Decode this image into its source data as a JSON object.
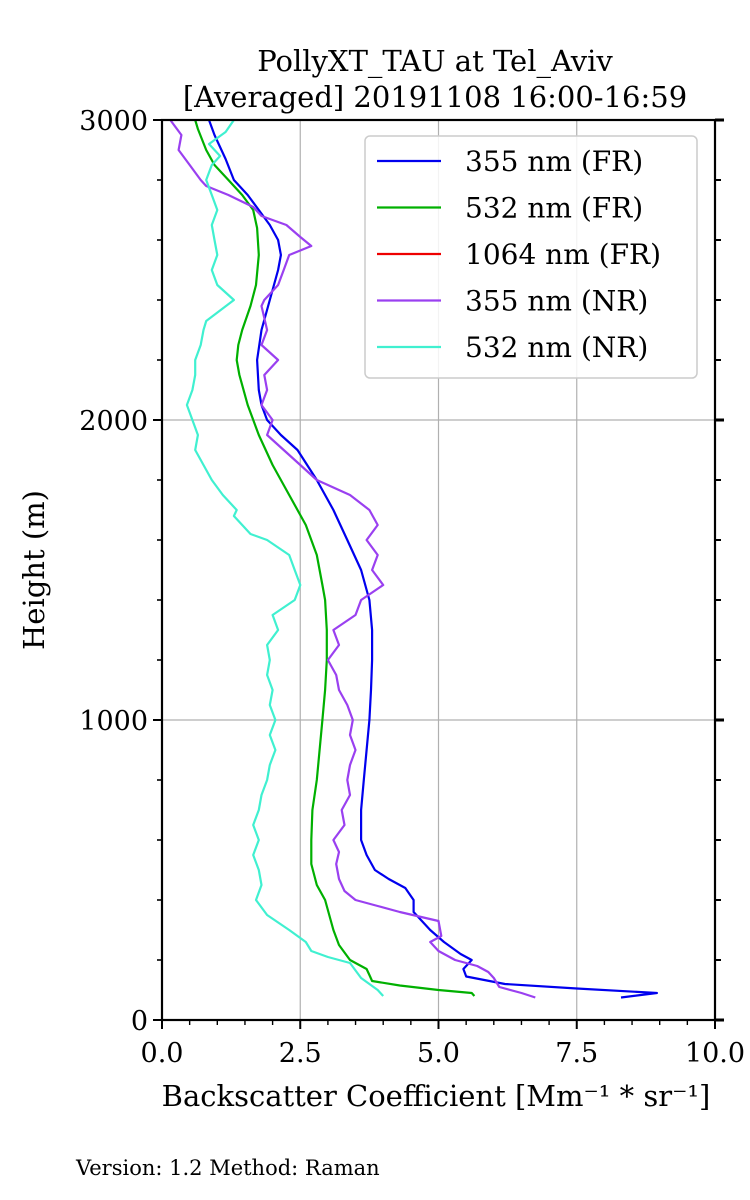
{
  "chart_data": {
    "type": "line",
    "title_line1": "PollyXT_TAU at Tel_Aviv",
    "title_line2": "[Averaged] 20191108 16:00-16:59",
    "xlabel": "Backscatter Coefficient [Mm⁻¹ * sr⁻¹]",
    "ylabel": "Height (m)",
    "xlim": [
      0,
      10
    ],
    "ylim": [
      0,
      3000
    ],
    "xticks": [
      "0.0",
      "2.5",
      "5.0",
      "7.5",
      "10.0"
    ],
    "yticks": [
      "0",
      "1000",
      "2000",
      "3000"
    ],
    "grid": true,
    "legend_position": "top-right",
    "series": [
      {
        "name": "355 nm (FR)",
        "color": "#0000ee",
        "points": [
          [
            8.3,
            75
          ],
          [
            8.95,
            90
          ],
          [
            7.5,
            105
          ],
          [
            6.2,
            120
          ],
          [
            5.5,
            145
          ],
          [
            5.45,
            170
          ],
          [
            5.6,
            200
          ],
          [
            5.4,
            220
          ],
          [
            5.1,
            260
          ],
          [
            4.85,
            300
          ],
          [
            4.7,
            330
          ],
          [
            4.55,
            360
          ],
          [
            4.55,
            400
          ],
          [
            4.4,
            440
          ],
          [
            4.1,
            470
          ],
          [
            3.85,
            500
          ],
          [
            3.7,
            550
          ],
          [
            3.6,
            600
          ],
          [
            3.6,
            700
          ],
          [
            3.65,
            800
          ],
          [
            3.7,
            900
          ],
          [
            3.75,
            1000
          ],
          [
            3.78,
            1100
          ],
          [
            3.8,
            1200
          ],
          [
            3.8,
            1300
          ],
          [
            3.75,
            1400
          ],
          [
            3.6,
            1500
          ],
          [
            3.35,
            1600
          ],
          [
            3.1,
            1700
          ],
          [
            2.8,
            1800
          ],
          [
            2.45,
            1900
          ],
          [
            2.15,
            1950
          ],
          [
            1.9,
            2000
          ],
          [
            1.8,
            2050
          ],
          [
            1.75,
            2100
          ],
          [
            1.72,
            2200
          ],
          [
            1.8,
            2300
          ],
          [
            1.95,
            2400
          ],
          [
            2.1,
            2500
          ],
          [
            2.15,
            2550
          ],
          [
            2.1,
            2600
          ],
          [
            1.95,
            2650
          ],
          [
            1.75,
            2700
          ],
          [
            1.55,
            2750
          ],
          [
            1.3,
            2800
          ],
          [
            1.15,
            2870
          ],
          [
            0.95,
            2950
          ],
          [
            0.85,
            3000
          ]
        ]
      },
      {
        "name": "532 nm (FR)",
        "color": "#00b000",
        "points": [
          [
            5.65,
            80
          ],
          [
            5.6,
            90
          ],
          [
            5.0,
            100
          ],
          [
            4.3,
            115
          ],
          [
            3.8,
            130
          ],
          [
            3.75,
            150
          ],
          [
            3.7,
            170
          ],
          [
            3.4,
            200
          ],
          [
            3.2,
            250
          ],
          [
            3.1,
            300
          ],
          [
            2.95,
            400
          ],
          [
            2.8,
            450
          ],
          [
            2.7,
            520
          ],
          [
            2.7,
            600
          ],
          [
            2.72,
            700
          ],
          [
            2.8,
            800
          ],
          [
            2.9,
            1000
          ],
          [
            2.95,
            1100
          ],
          [
            2.98,
            1200
          ],
          [
            2.98,
            1300
          ],
          [
            2.95,
            1400
          ],
          [
            2.9,
            1450
          ],
          [
            2.8,
            1550
          ],
          [
            2.6,
            1650
          ],
          [
            2.3,
            1750
          ],
          [
            2.0,
            1850
          ],
          [
            1.75,
            1950
          ],
          [
            1.55,
            2050
          ],
          [
            1.4,
            2150
          ],
          [
            1.35,
            2200
          ],
          [
            1.38,
            2250
          ],
          [
            1.45,
            2300
          ],
          [
            1.6,
            2380
          ],
          [
            1.7,
            2450
          ],
          [
            1.75,
            2550
          ],
          [
            1.72,
            2640
          ],
          [
            1.65,
            2700
          ],
          [
            1.45,
            2750
          ],
          [
            1.2,
            2800
          ],
          [
            0.95,
            2850
          ],
          [
            0.8,
            2900
          ],
          [
            0.65,
            2970
          ],
          [
            0.6,
            3000
          ]
        ]
      },
      {
        "name": "1064 nm (FR)",
        "color": "#ee0000",
        "points": []
      },
      {
        "name": "355 nm (NR)",
        "color": "#9a40f0",
        "points": [
          [
            6.75,
            75
          ],
          [
            6.5,
            90
          ],
          [
            6.1,
            110
          ],
          [
            6.0,
            140
          ],
          [
            5.9,
            160
          ],
          [
            5.7,
            180
          ],
          [
            5.3,
            200
          ],
          [
            5.0,
            230
          ],
          [
            4.85,
            260
          ],
          [
            5.05,
            280
          ],
          [
            5.0,
            330
          ],
          [
            4.3,
            360
          ],
          [
            3.9,
            380
          ],
          [
            3.5,
            400
          ],
          [
            3.3,
            430
          ],
          [
            3.2,
            470
          ],
          [
            3.15,
            520
          ],
          [
            3.2,
            560
          ],
          [
            3.1,
            600
          ],
          [
            3.3,
            650
          ],
          [
            3.25,
            700
          ],
          [
            3.4,
            750
          ],
          [
            3.35,
            800
          ],
          [
            3.4,
            850
          ],
          [
            3.5,
            900
          ],
          [
            3.4,
            950
          ],
          [
            3.45,
            1000
          ],
          [
            3.35,
            1050
          ],
          [
            3.2,
            1100
          ],
          [
            3.15,
            1150
          ],
          [
            3.0,
            1200
          ],
          [
            3.2,
            1250
          ],
          [
            3.1,
            1300
          ],
          [
            3.5,
            1350
          ],
          [
            3.6,
            1400
          ],
          [
            4.0,
            1450
          ],
          [
            3.8,
            1500
          ],
          [
            3.9,
            1550
          ],
          [
            3.7,
            1600
          ],
          [
            3.9,
            1650
          ],
          [
            3.75,
            1700
          ],
          [
            3.4,
            1750
          ],
          [
            2.8,
            1800
          ],
          [
            2.5,
            1850
          ],
          [
            2.2,
            1900
          ],
          [
            1.9,
            1950
          ],
          [
            2.0,
            2000
          ],
          [
            1.8,
            2050
          ],
          [
            1.9,
            2100
          ],
          [
            1.85,
            2150
          ],
          [
            2.1,
            2200
          ],
          [
            1.8,
            2250
          ],
          [
            1.9,
            2300
          ],
          [
            1.8,
            2380
          ],
          [
            1.85,
            2400
          ],
          [
            2.1,
            2450
          ],
          [
            2.2,
            2500
          ],
          [
            2.3,
            2550
          ],
          [
            2.7,
            2580
          ],
          [
            2.5,
            2610
          ],
          [
            2.25,
            2650
          ],
          [
            1.8,
            2680
          ],
          [
            1.65,
            2710
          ],
          [
            1.2,
            2750
          ],
          [
            0.8,
            2780
          ],
          [
            0.7,
            2800
          ],
          [
            0.5,
            2850
          ],
          [
            0.3,
            2900
          ],
          [
            0.35,
            2950
          ],
          [
            0.15,
            3000
          ]
        ]
      },
      {
        "name": "532 nm (NR)",
        "color": "#40f0d0",
        "points": [
          [
            4.0,
            80
          ],
          [
            3.9,
            100
          ],
          [
            3.6,
            140
          ],
          [
            3.4,
            190
          ],
          [
            3.0,
            210
          ],
          [
            2.7,
            230
          ],
          [
            2.6,
            260
          ],
          [
            2.3,
            300
          ],
          [
            1.9,
            350
          ],
          [
            1.7,
            400
          ],
          [
            1.8,
            450
          ],
          [
            1.75,
            500
          ],
          [
            1.65,
            550
          ],
          [
            1.75,
            600
          ],
          [
            1.65,
            650
          ],
          [
            1.75,
            700
          ],
          [
            1.8,
            750
          ],
          [
            1.9,
            800
          ],
          [
            1.95,
            850
          ],
          [
            2.05,
            900
          ],
          [
            1.95,
            950
          ],
          [
            2.05,
            1000
          ],
          [
            1.95,
            1050
          ],
          [
            2.0,
            1100
          ],
          [
            1.9,
            1150
          ],
          [
            1.95,
            1200
          ],
          [
            1.9,
            1250
          ],
          [
            2.1,
            1300
          ],
          [
            2.0,
            1350
          ],
          [
            2.4,
            1400
          ],
          [
            2.5,
            1450
          ],
          [
            2.4,
            1500
          ],
          [
            2.3,
            1550
          ],
          [
            1.9,
            1600
          ],
          [
            1.6,
            1620
          ],
          [
            1.45,
            1650
          ],
          [
            1.3,
            1680
          ],
          [
            1.35,
            1700
          ],
          [
            1.1,
            1750
          ],
          [
            0.9,
            1800
          ],
          [
            0.75,
            1850
          ],
          [
            0.6,
            1900
          ],
          [
            0.65,
            1950
          ],
          [
            0.55,
            2000
          ],
          [
            0.45,
            2050
          ],
          [
            0.55,
            2100
          ],
          [
            0.6,
            2150
          ],
          [
            0.6,
            2200
          ],
          [
            0.7,
            2250
          ],
          [
            0.75,
            2300
          ],
          [
            0.8,
            2330
          ],
          [
            1.3,
            2400
          ],
          [
            1.0,
            2450
          ],
          [
            0.9,
            2500
          ],
          [
            1.0,
            2550
          ],
          [
            0.95,
            2600
          ],
          [
            0.9,
            2650
          ],
          [
            1.0,
            2700
          ],
          [
            0.9,
            2750
          ],
          [
            0.8,
            2800
          ],
          [
            0.9,
            2850
          ],
          [
            1.05,
            2880
          ],
          [
            0.85,
            2920
          ],
          [
            1.15,
            2960
          ],
          [
            1.3,
            3000
          ]
        ]
      }
    ]
  },
  "footer": {
    "version_text": "Version: 1.2  Method: Raman"
  }
}
